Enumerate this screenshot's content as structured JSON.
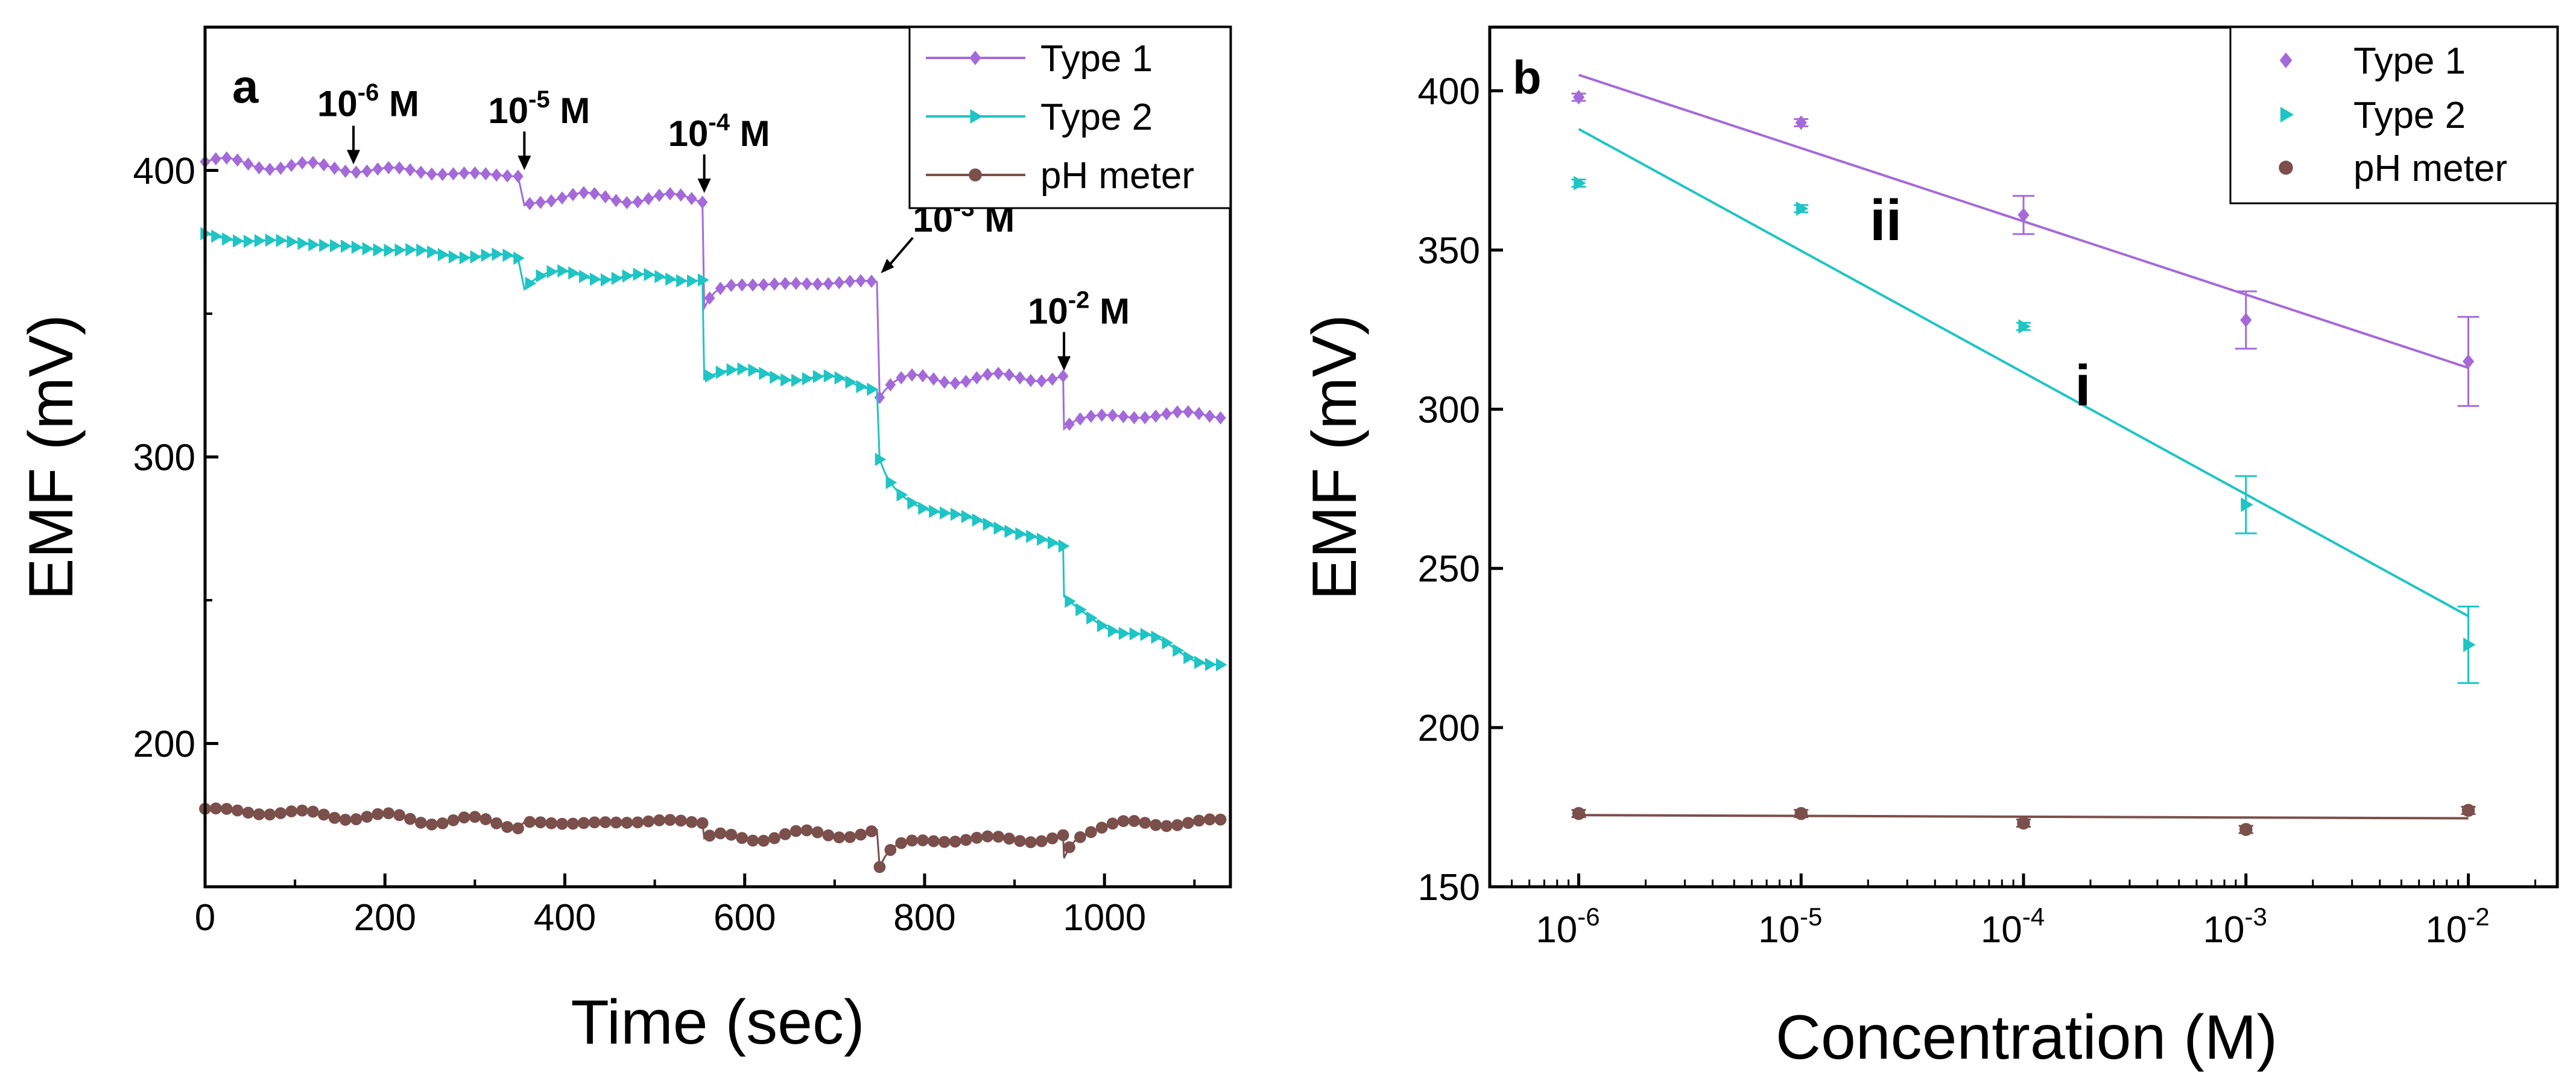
{
  "chart_data": [
    {
      "type": "scatter",
      "panel_label": "a",
      "xlabel": "Time (sec)",
      "ylabel": "EMF (mV)",
      "xlim": [
        0,
        1140
      ],
      "ylim": [
        150,
        450
      ],
      "xticks": [
        0,
        200,
        400,
        600,
        800,
        1000
      ],
      "yticks": [
        200,
        300,
        400
      ],
      "legend": [
        "Type 1",
        "Type 2",
        "pH meter"
      ],
      "legend_position": "top-right",
      "series": [
        {
          "name": "Type 1",
          "color": "#a46ad9",
          "marker": "diamond",
          "segments": [
            {
              "t0": 0,
              "t1": 350,
              "v0": 403,
              "v1": 398,
              "start": 403
            },
            {
              "t0": 355,
              "t1": 555,
              "v0": 391,
              "v1": 390,
              "start": 388
            },
            {
              "t0": 555,
              "t1": 750,
              "v0": 360,
              "v1": 361,
              "start": 352
            },
            {
              "t0": 750,
              "t1": 955,
              "v0": 327,
              "v1": 328,
              "start": 322
            },
            {
              "t0": 955,
              "t1": 1140,
              "v0": 314,
              "v1": 315,
              "start": 310
            }
          ]
        },
        {
          "name": "Type 2",
          "color": "#1fc4c4",
          "marker": "triangle-right",
          "segments": [
            {
              "t0": 0,
              "t1": 350,
              "v0": 377,
              "v1": 369,
              "start": 377
            },
            {
              "t0": 355,
              "t1": 555,
              "v0": 364,
              "v1": 362,
              "start": 360
            },
            {
              "t0": 555,
              "t1": 750,
              "v0": 331,
              "v1": 325,
              "start": 328
            },
            {
              "t0": 750,
              "t1": 955,
              "v0": 287,
              "v1": 269,
              "start": 298
            },
            {
              "t0": 955,
              "t1": 1140,
              "v0": 247,
              "v1": 226,
              "start": 250
            }
          ]
        },
        {
          "name": "pH meter",
          "color": "#7b4f4b",
          "marker": "circle",
          "segments": [
            {
              "t0": 0,
              "t1": 350,
              "v0": 177,
              "v1": 172,
              "start": 177
            },
            {
              "t0": 355,
              "t1": 555,
              "v0": 172,
              "v1": 173,
              "start": 172
            },
            {
              "t0": 555,
              "t1": 750,
              "v0": 167,
              "v1": 169,
              "start": 166
            },
            {
              "t0": 750,
              "t1": 955,
              "v0": 166,
              "v1": 167,
              "start": 157
            },
            {
              "t0": 955,
              "t1": 1140,
              "v0": 171,
              "v1": 173,
              "start": 160
            }
          ]
        }
      ],
      "annotations": [
        {
          "base": "10",
          "exp": "-6",
          "unit": "M",
          "time": 165,
          "value": 400
        },
        {
          "base": "10",
          "exp": "-5",
          "unit": "M",
          "time": 355,
          "value": 398
        },
        {
          "base": "10",
          "exp": "-4",
          "unit": "M",
          "time": 555,
          "value": 390
        },
        {
          "base": "10",
          "exp": "-3",
          "unit": "M",
          "time": 750,
          "value": 362
        },
        {
          "base": "10",
          "exp": "-2",
          "unit": "M",
          "time": 955,
          "value": 328
        }
      ]
    },
    {
      "type": "scatter",
      "panel_label": "b",
      "xlabel": "Concentration (M)",
      "ylabel": "EMF (mV)",
      "xscale": "log",
      "xlim_log10": [
        -6.4,
        -1.6
      ],
      "ylim": [
        150,
        420
      ],
      "xticks_log10": [
        -6,
        -5,
        -4,
        -3,
        -2
      ],
      "xtick_base": "10",
      "xtick_exponents": [
        "-6",
        "-5",
        "-4",
        "-3",
        "-2"
      ],
      "yticks": [
        150,
        200,
        250,
        300,
        350,
        400
      ],
      "legend": [
        "Type 1",
        "Type 2",
        "pH meter"
      ],
      "legend_position": "top-right",
      "series": [
        {
          "name": "Type 1",
          "color": "#a46ad9",
          "marker": "diamond",
          "x_log10": [
            -6,
            -5,
            -4,
            -3,
            -2
          ],
          "y": [
            398,
            390,
            361,
            328,
            315
          ],
          "err": [
            0,
            0,
            6,
            9,
            14
          ],
          "fit_log10": [
            -6,
            -2
          ],
          "fit_y": [
            405,
            313
          ],
          "curve_label": "ii"
        },
        {
          "name": "Type 2",
          "color": "#1fc4c4",
          "marker": "triangle-right",
          "x_log10": [
            -6,
            -5,
            -4,
            -3,
            -2
          ],
          "y": [
            371,
            363,
            326,
            270,
            226
          ],
          "err": [
            0,
            0,
            0,
            9,
            12
          ],
          "fit_log10": [
            -6,
            -2
          ],
          "fit_y": [
            388,
            235
          ],
          "curve_label": "i"
        },
        {
          "name": "pH meter",
          "color": "#7b4f4b",
          "marker": "circle",
          "x_log10": [
            -6,
            -5,
            -4,
            -3,
            -2
          ],
          "y": [
            173,
            173,
            170,
            168,
            174
          ],
          "err": [
            0,
            0,
            0,
            0,
            0
          ],
          "fit_log10": [
            -6,
            -2
          ],
          "fit_y": [
            172.5,
            171.5
          ]
        }
      ]
    }
  ]
}
